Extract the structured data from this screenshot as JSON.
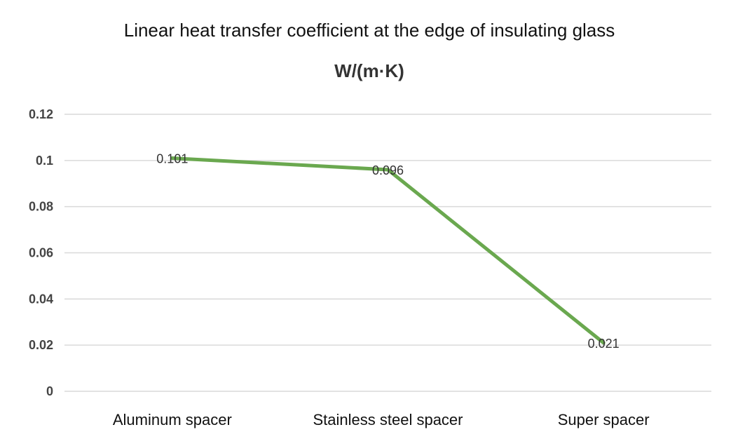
{
  "chart_data": {
    "type": "line",
    "title": "Linear heat transfer coefficient at the edge of insulating glass",
    "subtitle": "W/(m·K)",
    "xlabel": "",
    "ylabel": "",
    "categories": [
      "Aluminum spacer",
      "Stainless steel spacer",
      "Super spacer"
    ],
    "series": [
      {
        "values": [
          0.101,
          0.096,
          0.021
        ],
        "data_labels": [
          "0.101",
          "0.096",
          "0.021"
        ],
        "color": "#6aa84f"
      }
    ],
    "ylim": [
      0,
      0.12
    ],
    "y_ticks": [
      0,
      0.02,
      0.04,
      0.06,
      0.08,
      0.1,
      0.12
    ],
    "y_tick_labels": [
      "0",
      "0.02",
      "0.04",
      "0.06",
      "0.08",
      "0.1",
      "0.12"
    ],
    "grid": true,
    "legend": "none"
  }
}
